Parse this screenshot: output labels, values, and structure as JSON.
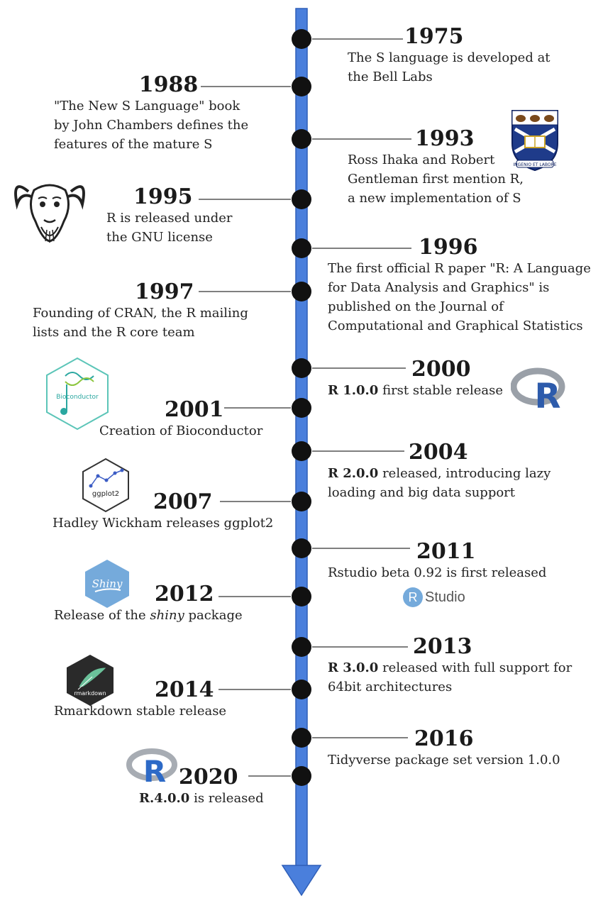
{
  "events": [
    {
      "year": "1975",
      "desc": "The S language is developed at the Bell Labs"
    },
    {
      "year": "1988",
      "desc": "\"The New S Language\" book by John Chambers defines the features of the mature S"
    },
    {
      "year": "1993",
      "desc": "Ross Ihaka and Robert Gentleman first mention R, a new implementation of S"
    },
    {
      "year": "1995",
      "desc": "R is released under the GNU license"
    },
    {
      "year": "1996",
      "desc": "The first official R paper \"R: A Language for Data Analysis and Graphics\" is published on the Journal of Computational and Graphical Statistics"
    },
    {
      "year": "1997",
      "desc": "Founding of CRAN, the R mailing lists and the R core team"
    },
    {
      "year": "2000",
      "desc_bold": "R 1.0.0",
      "desc": " first stable release"
    },
    {
      "year": "2001",
      "desc": "Creation of Bioconductor"
    },
    {
      "year": "2004",
      "desc_bold": "R 2.0.0",
      "desc": " released, introducing lazy loading and big data support"
    },
    {
      "year": "2007",
      "desc": "Hadley Wickham releases ggplot2"
    },
    {
      "year": "2011",
      "desc": "Rstudio beta 0.92 is first released"
    },
    {
      "year": "2012",
      "desc_pre": "Release of the ",
      "desc_italic": "shiny",
      "desc": " package"
    },
    {
      "year": "2013",
      "desc_bold": "R 3.0.0",
      "desc": " released with full support for 64bit architectures"
    },
    {
      "year": "2014",
      "desc": "Rmarkdown stable release"
    },
    {
      "year": "2016",
      "desc": "Tidyverse package set version 1.0.0"
    },
    {
      "year": "2020",
      "desc_bold": "R.4.0.0",
      "desc": " is released"
    }
  ],
  "logos": {
    "bioconductor": "Bioconductor",
    "ggplot2": "ggplot2",
    "shiny": "Shiny",
    "rmarkdown": "rmarkdown",
    "rstudio_r": "R",
    "rstudio_text": "Studio",
    "r_logo": "R",
    "auckland_motto": "INGENIO ET LABORE"
  },
  "colors": {
    "axis": "#4a7fdc",
    "axis_border": "#2f5fb8",
    "node": "#111111",
    "connector": "#555555"
  }
}
